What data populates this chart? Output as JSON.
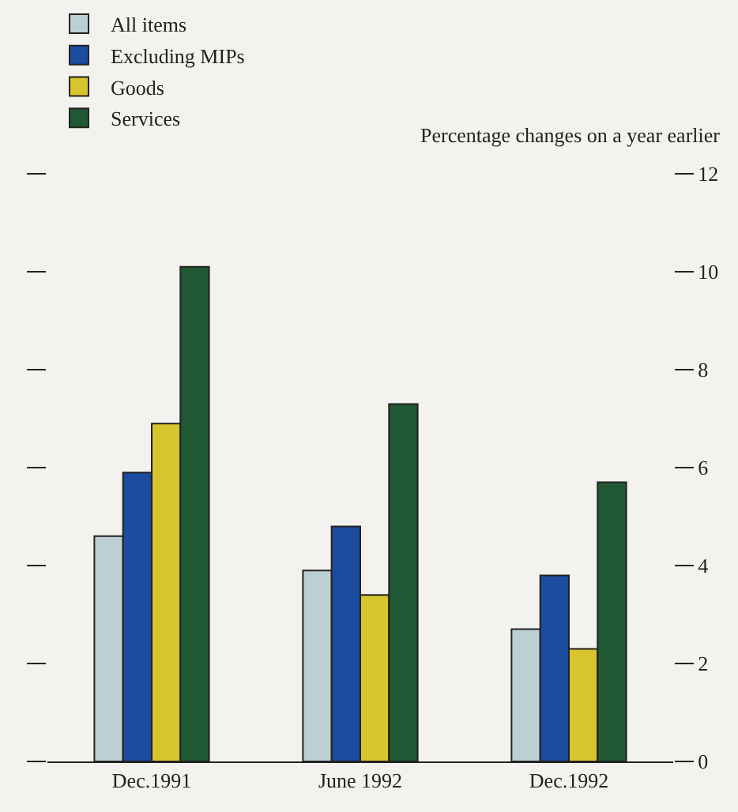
{
  "chart_data": {
    "type": "bar",
    "ylabel": "Percentage changes on a year earlier",
    "categories": [
      "Dec.1991",
      "June 1992",
      "Dec.1992"
    ],
    "series": [
      {
        "name": "All items",
        "color": "#bccfd2",
        "values": [
          4.6,
          3.9,
          2.7
        ]
      },
      {
        "name": "Excluding MIPs",
        "color": "#1c4c9e",
        "values": [
          5.9,
          4.8,
          3.8
        ]
      },
      {
        "name": "Goods",
        "color": "#d8c42c",
        "values": [
          6.9,
          3.4,
          2.3
        ]
      },
      {
        "name": "Services",
        "color": "#1f5832",
        "values": [
          10.1,
          7.3,
          5.7
        ]
      }
    ],
    "ylim": [
      0,
      12
    ],
    "yticks": [
      0,
      2,
      4,
      6,
      8,
      10,
      12
    ],
    "grid": false,
    "legend": "top left"
  }
}
